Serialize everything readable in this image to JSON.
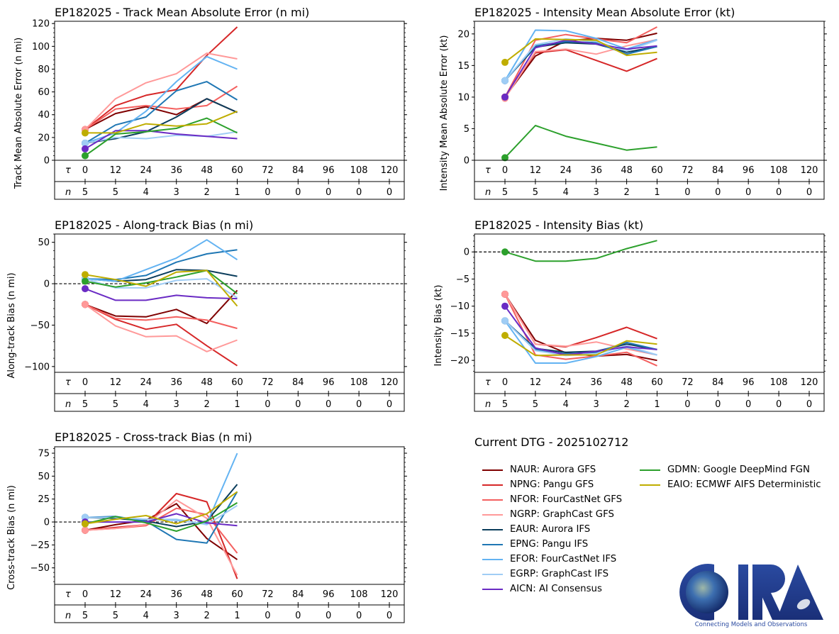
{
  "storm_id": "EP182025",
  "current_dtg_label": "Current DTG - 2025102712",
  "logo": {
    "text": "CIRA",
    "tagline": "Connecting Models and Observations"
  },
  "models": [
    {
      "id": "NAUR",
      "label": "NAUR: Aurora GFS",
      "color": "#7f0000"
    },
    {
      "id": "NPNG",
      "label": "NPNG: Pangu GFS",
      "color": "#d62728"
    },
    {
      "id": "NFOR",
      "label": "NFOR: FourCastNet GFS",
      "color": "#f4605f"
    },
    {
      "id": "NGRP",
      "label": "NGRP: GraphCast GFS",
      "color": "#ff9999"
    },
    {
      "id": "EAUR",
      "label": "EAUR: Aurora IFS",
      "color": "#0b3d5c"
    },
    {
      "id": "EPNG",
      "label": "EPNG: Pangu IFS",
      "color": "#1f77b4"
    },
    {
      "id": "EFOR",
      "label": "EFOR: FourCastNet IFS",
      "color": "#63b3f2"
    },
    {
      "id": "EGRP",
      "label": "EGRP: GraphCast IFS",
      "color": "#a0cdf5"
    },
    {
      "id": "AICN",
      "label": "AICN: AI Consensus",
      "color": "#6a2bc4"
    },
    {
      "id": "GDMN",
      "label": "GDMN: Google DeepMind FGN",
      "color": "#2ca02c"
    },
    {
      "id": "EAIO",
      "label": "EAIO: ECMWF AIFS Deterministic",
      "color": "#bfad00"
    }
  ],
  "chart_data": [
    {
      "type": "line",
      "title": "EP182025 - Track Mean Absolute Error (n mi)",
      "ylabel": "Track Mean Absolute Error (n mi)",
      "xlabel": "τ",
      "ylim": [
        0,
        122
      ],
      "yticks": [
        0,
        20,
        40,
        60,
        80,
        100,
        120
      ],
      "zero_line": false,
      "x": [
        0,
        12,
        24,
        36,
        48,
        60
      ],
      "tau_ticks": [
        0,
        12,
        24,
        36,
        48,
        60,
        72,
        84,
        96,
        108,
        120
      ],
      "n_counts": [
        5,
        5,
        4,
        3,
        2,
        1,
        0,
        0,
        0,
        0,
        0
      ],
      "series": [
        {
          "name": "NAUR",
          "values": [
            27,
            41,
            47,
            40,
            54,
            42
          ]
        },
        {
          "name": "NPNG",
          "values": [
            27,
            48,
            57,
            62,
            92,
            117
          ]
        },
        {
          "name": "NFOR",
          "values": [
            27,
            45,
            48,
            45,
            48,
            65
          ]
        },
        {
          "name": "NGRP",
          "values": [
            27,
            54,
            68,
            76,
            94,
            89
          ]
        },
        {
          "name": "EAUR",
          "values": [
            15,
            19,
            25,
            38,
            54,
            42
          ]
        },
        {
          "name": "EPNG",
          "values": [
            15,
            31,
            38,
            61,
            69,
            53
          ]
        },
        {
          "name": "EFOR",
          "values": [
            15,
            24,
            43,
            69,
            91,
            80
          ]
        },
        {
          "name": "EGRP",
          "values": [
            15,
            20,
            19,
            22,
            21,
            25
          ]
        },
        {
          "name": "AICN",
          "values": [
            10,
            26,
            26,
            23,
            21,
            19
          ]
        },
        {
          "name": "GDMN",
          "values": [
            4,
            23,
            25,
            28,
            37,
            24
          ]
        },
        {
          "name": "EAIO",
          "values": [
            24,
            24,
            32,
            30,
            32,
            43
          ]
        }
      ]
    },
    {
      "type": "line",
      "title": "EP182025 - Intensity Mean Absolute Error (kt)",
      "ylabel": "Intensity Mean Absolute Error (kt)",
      "xlabel": "τ",
      "ylim": [
        0,
        22
      ],
      "yticks": [
        0,
        5,
        10,
        15,
        20
      ],
      "zero_line": false,
      "x": [
        0,
        12,
        24,
        36,
        48,
        60
      ],
      "tau_ticks": [
        0,
        12,
        24,
        36,
        48,
        60,
        72,
        84,
        96,
        108,
        120
      ],
      "n_counts": [
        5,
        5,
        4,
        3,
        2,
        1,
        0,
        0,
        0,
        0,
        0
      ],
      "series": [
        {
          "name": "NAUR",
          "values": [
            10,
            16.5,
            18.9,
            19.3,
            19.0,
            20.1
          ]
        },
        {
          "name": "NPNG",
          "values": [
            10,
            17.0,
            17.5,
            15.8,
            14.1,
            16.1
          ]
        },
        {
          "name": "NFOR",
          "values": [
            10,
            19.0,
            19.9,
            19.2,
            18.6,
            21.1
          ]
        },
        {
          "name": "NGRP",
          "values": [
            9.8,
            17.2,
            17.6,
            16.8,
            18.1,
            19.1
          ]
        },
        {
          "name": "EAUR",
          "values": [
            12.6,
            17.9,
            18.6,
            18.4,
            17.1,
            18.0
          ]
        },
        {
          "name": "EPNG",
          "values": [
            12.6,
            18.1,
            18.8,
            18.6,
            16.8,
            18.0
          ]
        },
        {
          "name": "EFOR",
          "values": [
            12.6,
            20.6,
            20.5,
            19.3,
            17.6,
            19.1
          ]
        },
        {
          "name": "EGRP",
          "values": [
            12.6,
            18.3,
            19.2,
            18.8,
            17.3,
            19.0
          ]
        },
        {
          "name": "AICN",
          "values": [
            10,
            17.8,
            19.0,
            18.4,
            17.6,
            18.1
          ]
        },
        {
          "name": "GDMN",
          "values": [
            0.4,
            5.5,
            3.8,
            2.7,
            1.6,
            2.1
          ]
        },
        {
          "name": "EAIO",
          "values": [
            15.5,
            19.2,
            19.1,
            19.0,
            16.6,
            17.1
          ]
        }
      ]
    },
    {
      "type": "line",
      "title": "EP182025 - Along-track Bias (n mi)",
      "ylabel": "Along-track Bias (n mi)",
      "xlabel": "τ",
      "ylim": [
        -107,
        60
      ],
      "yticks": [
        -100,
        -50,
        0,
        50
      ],
      "zero_line": true,
      "x": [
        0,
        12,
        24,
        36,
        48,
        60
      ],
      "tau_ticks": [
        0,
        12,
        24,
        36,
        48,
        60,
        72,
        84,
        96,
        108,
        120
      ],
      "n_counts": [
        5,
        5,
        4,
        3,
        2,
        1,
        0,
        0,
        0,
        0,
        0
      ],
      "series": [
        {
          "name": "NAUR",
          "values": [
            -25,
            -39,
            -40,
            -31,
            -48,
            -8
          ]
        },
        {
          "name": "NPNG",
          "values": [
            -25,
            -43,
            -55,
            -49,
            -75,
            -99
          ]
        },
        {
          "name": "NFOR",
          "values": [
            -25,
            -42,
            -44,
            -40,
            -44,
            -54
          ]
        },
        {
          "name": "NGRP",
          "values": [
            -25,
            -51,
            -64,
            -63,
            -82,
            -68
          ]
        },
        {
          "name": "EAUR",
          "values": [
            6,
            3,
            5,
            17,
            16,
            9
          ]
        },
        {
          "name": "EPNG",
          "values": [
            6,
            5,
            10,
            26,
            36,
            41
          ]
        },
        {
          "name": "EFOR",
          "values": [
            6,
            3,
            17,
            31,
            53,
            29
          ]
        },
        {
          "name": "EGRP",
          "values": [
            6,
            -5,
            -5,
            4,
            6,
            -17
          ]
        },
        {
          "name": "AICN",
          "values": [
            -6,
            -20,
            -20,
            -14,
            -17,
            -18
          ]
        },
        {
          "name": "GDMN",
          "values": [
            3,
            -4,
            1,
            8,
            16,
            -12
          ]
        },
        {
          "name": "EAIO",
          "values": [
            11,
            5,
            -3,
            14,
            16,
            -27
          ]
        }
      ]
    },
    {
      "type": "line",
      "title": "EP182025 - Intensity Bias (kt)",
      "ylabel": "Intensity Bias (kt)",
      "xlabel": "τ",
      "ylim": [
        -22.2,
        3.3
      ],
      "yticks": [
        -20,
        -15,
        -10,
        -5,
        0
      ],
      "zero_line": true,
      "x": [
        0,
        12,
        24,
        36,
        48,
        60
      ],
      "tau_ticks": [
        0,
        12,
        24,
        36,
        48,
        60,
        72,
        84,
        96,
        108,
        120
      ],
      "n_counts": [
        5,
        5,
        4,
        3,
        2,
        1,
        0,
        0,
        0,
        0,
        0
      ],
      "series": [
        {
          "name": "NAUR",
          "values": [
            -7.8,
            -16.3,
            -18.6,
            -19.2,
            -18.9,
            -20.0
          ]
        },
        {
          "name": "NPNG",
          "values": [
            -7.8,
            -17.0,
            -17.5,
            -15.8,
            -13.9,
            -16.0
          ]
        },
        {
          "name": "NFOR",
          "values": [
            -7.8,
            -19.0,
            -19.8,
            -19.2,
            -18.5,
            -21.0
          ]
        },
        {
          "name": "NGRP",
          "values": [
            -7.8,
            -17.0,
            -17.4,
            -16.6,
            -17.9,
            -19.0
          ]
        },
        {
          "name": "EAUR",
          "values": [
            -12.7,
            -17.8,
            -18.5,
            -18.3,
            -17.0,
            -18.0
          ]
        },
        {
          "name": "EPNG",
          "values": [
            -12.7,
            -18.0,
            -18.8,
            -18.5,
            -16.7,
            -18.0
          ]
        },
        {
          "name": "EFOR",
          "values": [
            -12.7,
            -20.5,
            -20.5,
            -19.3,
            -17.6,
            -19.0
          ]
        },
        {
          "name": "EGRP",
          "values": [
            -12.7,
            -18.2,
            -19.1,
            -18.8,
            -17.3,
            -19.0
          ]
        },
        {
          "name": "AICN",
          "values": [
            -10,
            -17.7,
            -19.0,
            -18.3,
            -17.5,
            -18.0
          ]
        },
        {
          "name": "GDMN",
          "values": [
            0,
            -1.7,
            -1.7,
            -1.2,
            0.6,
            2.1
          ]
        },
        {
          "name": "EAIO",
          "values": [
            -15.4,
            -19.1,
            -19.0,
            -19.0,
            -16.4,
            -17.0
          ]
        }
      ]
    },
    {
      "type": "line",
      "title": "EP182025 - Cross-track Bias (n mi)",
      "ylabel": "Cross-track Bias (n mi)",
      "xlabel": "τ",
      "ylim": [
        -68,
        82
      ],
      "yticks": [
        -50,
        -25,
        0,
        25,
        50,
        75
      ],
      "zero_line": true,
      "x": [
        0,
        12,
        24,
        36,
        48,
        60
      ],
      "tau_ticks": [
        0,
        12,
        24,
        36,
        48,
        60,
        72,
        84,
        96,
        108,
        120
      ],
      "n_counts": [
        5,
        5,
        4,
        3,
        2,
        1,
        0,
        0,
        0,
        0,
        0
      ],
      "series": [
        {
          "name": "NAUR",
          "values": [
            -9,
            -3,
            2,
            20,
            -18,
            -41
          ]
        },
        {
          "name": "NPNG",
          "values": [
            -9,
            -6,
            -3,
            31,
            22,
            -62
          ]
        },
        {
          "name": "NFOR",
          "values": [
            -9,
            -7,
            -4,
            15,
            8,
            -34
          ]
        },
        {
          "name": "NGRP",
          "values": [
            -9,
            -7,
            -3,
            24,
            4,
            -58
          ]
        },
        {
          "name": "EAUR",
          "values": [
            5,
            4,
            1,
            -5,
            1,
            41
          ]
        },
        {
          "name": "EPNG",
          "values": [
            5,
            6,
            1,
            -19,
            -23,
            33
          ]
        },
        {
          "name": "EFOR",
          "values": [
            5,
            5,
            3,
            2,
            -2,
            75
          ]
        },
        {
          "name": "EGRP",
          "values": [
            5,
            5,
            3,
            3,
            -3,
            18
          ]
        },
        {
          "name": "AICN",
          "values": [
            0,
            0,
            0,
            9,
            -1,
            -4
          ]
        },
        {
          "name": "GDMN",
          "values": [
            -2,
            6,
            -1,
            -10,
            1,
            21
          ]
        },
        {
          "name": "EAIO",
          "values": [
            -2,
            3,
            7,
            -2,
            9,
            33
          ]
        }
      ]
    }
  ]
}
